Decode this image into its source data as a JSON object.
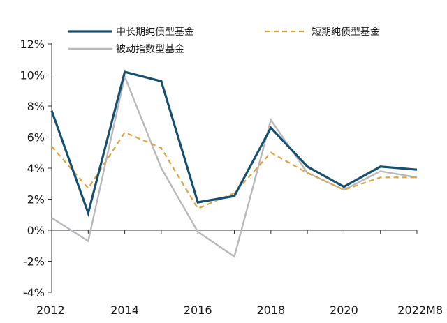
{
  "chart_data": {
    "type": "line",
    "x": [
      2012,
      2013,
      2014,
      2015,
      2016,
      2017,
      2018,
      2019,
      2020,
      2021,
      2022
    ],
    "x_tick_labels": [
      "2012",
      "2014",
      "2016",
      "2018",
      "2020",
      "2022M8"
    ],
    "x_tick_values": [
      2012,
      2014,
      2016,
      2018,
      2020,
      2022
    ],
    "ylim": [
      -4,
      12
    ],
    "y_ticks": [
      -4,
      -2,
      0,
      2,
      4,
      6,
      8,
      10,
      12
    ],
    "y_tick_labels": [
      "-4%",
      "-2%",
      "0%",
      "2%",
      "4%",
      "6%",
      "8%",
      "10%",
      "12%"
    ],
    "grid": false,
    "legend_position": "top",
    "series": [
      {
        "name": "中长期纯债型基金",
        "color": "#17506e",
        "style": "solid",
        "values": [
          7.7,
          1.1,
          10.2,
          9.6,
          1.8,
          2.2,
          6.6,
          4.1,
          2.8,
          4.1,
          3.9
        ]
      },
      {
        "name": "短期纯债型基金",
        "color": "#d9a441",
        "style": "dashed",
        "values": [
          5.4,
          2.7,
          6.3,
          5.3,
          1.4,
          2.4,
          5.0,
          3.7,
          2.6,
          3.4,
          3.4
        ]
      },
      {
        "name": "被动指数型基金",
        "color": "#b8b8bc",
        "style": "solid",
        "values": [
          0.8,
          -0.7,
          9.9,
          4.0,
          -0.1,
          -1.7,
          7.1,
          3.7,
          2.6,
          3.8,
          3.4
        ]
      }
    ]
  }
}
